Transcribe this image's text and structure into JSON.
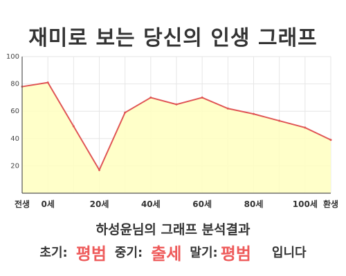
{
  "title": "재미로 보는 당신의 인생 그래프",
  "subtitle": "하성윤님의 그래프 분석결과",
  "result": {
    "early_label": "초기:",
    "early_value": "평범",
    "middle_label": "중기:",
    "middle_value": "출세",
    "late_label": "말기:",
    "late_value": "평범",
    "suffix": "입니다"
  },
  "colors": {
    "line": "#e05555",
    "fill": "#ffffc0",
    "grid": "#e6e6e6",
    "accent": "#ee5a5a"
  },
  "chart_data": {
    "type": "area",
    "title": "",
    "xlabel": "",
    "ylabel": "",
    "ylim": [
      0,
      100
    ],
    "yticks": [
      20,
      40,
      60,
      80,
      100
    ],
    "xticks": [
      "전생",
      "0세",
      "20세",
      "40세",
      "60세",
      "80세",
      "100세",
      "환생"
    ],
    "grid": true,
    "series": [
      {
        "x": [
          "전생",
          "0세",
          "10세",
          "20세",
          "30세",
          "40세",
          "50세",
          "60세",
          "70세",
          "80세",
          "90세",
          "100세",
          "환생"
        ],
        "values": [
          78,
          81,
          49,
          17,
          59,
          70,
          65,
          70,
          62,
          58,
          53,
          48,
          39
        ]
      }
    ]
  }
}
